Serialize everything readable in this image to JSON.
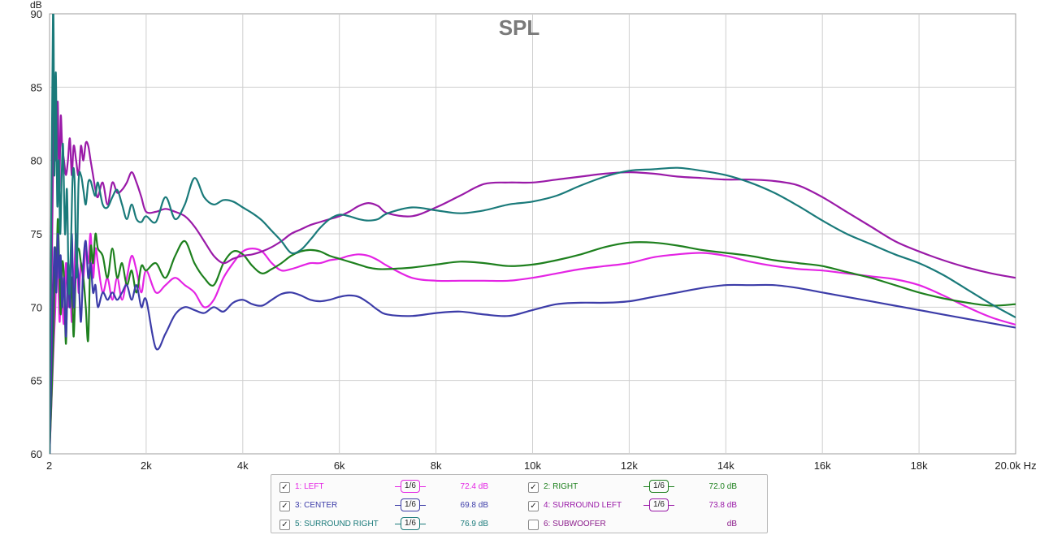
{
  "chart_data": {
    "type": "line",
    "title": "SPL",
    "ylabel": "dB",
    "xlabel": "Hz",
    "xlim": [
      0,
      20000
    ],
    "ylim": [
      60,
      90
    ],
    "x_ticks": [
      {
        "value": 0,
        "label": "2"
      },
      {
        "value": 2000,
        "label": "2k"
      },
      {
        "value": 4000,
        "label": "4k"
      },
      {
        "value": 6000,
        "label": "6k"
      },
      {
        "value": 8000,
        "label": "8k"
      },
      {
        "value": 10000,
        "label": "10k"
      },
      {
        "value": 12000,
        "label": "12k"
      },
      {
        "value": 14000,
        "label": "14k"
      },
      {
        "value": 16000,
        "label": "16k"
      },
      {
        "value": 18000,
        "label": "18k"
      },
      {
        "value": 20000,
        "label": "20.0k Hz"
      }
    ],
    "y_ticks": [
      60,
      65,
      70,
      75,
      80,
      85,
      90
    ],
    "grid": true,
    "series": [
      {
        "name": "1: LEFT",
        "color": "#e424e4",
        "smoothing": "1/6",
        "value_label": "72.4 dB",
        "checked": true,
        "visible": true,
        "x": [
          0,
          80,
          120,
          150,
          180,
          210,
          240,
          270,
          300,
          340,
          380,
          420,
          460,
          500,
          550,
          600,
          650,
          700,
          750,
          800,
          850,
          900,
          950,
          1000,
          1100,
          1200,
          1300,
          1400,
          1500,
          1600,
          1700,
          1800,
          1900,
          2000,
          2200,
          2400,
          2600,
          2800,
          3000,
          3200,
          3400,
          3600,
          3800,
          4000,
          4200,
          4400,
          4600,
          4800,
          5000,
          5200,
          5400,
          5600,
          5800,
          6000,
          6200,
          6400,
          6600,
          6800,
          7000,
          7500,
          8000,
          8500,
          9000,
          9500,
          10000,
          10500,
          11000,
          11500,
          12000,
          12500,
          13000,
          13500,
          14000,
          14500,
          15000,
          15500,
          16000,
          16500,
          17000,
          17500,
          18000,
          18500,
          19000,
          19500,
          20000
        ],
        "y": [
          60,
          67,
          70,
          74,
          72,
          69,
          73,
          70,
          69,
          73,
          70,
          72,
          69,
          71,
          75,
          71,
          73,
          72,
          74,
          73,
          75,
          72,
          74,
          73,
          71,
          72,
          70.5,
          72,
          70.5,
          72,
          73.5,
          72.5,
          71,
          72.5,
          71,
          71.5,
          72,
          71.5,
          71,
          70,
          70.5,
          72,
          73,
          73.8,
          74,
          73.8,
          73,
          72.5,
          72.6,
          72.8,
          73,
          73,
          73.2,
          73.3,
          73.5,
          73.6,
          73.5,
          73.2,
          72.8,
          72,
          71.8,
          71.8,
          71.8,
          71.8,
          72,
          72.3,
          72.6,
          72.8,
          73,
          73.4,
          73.6,
          73.7,
          73.5,
          73.1,
          72.8,
          72.6,
          72.5,
          72.3,
          72.1,
          71.9,
          71.5,
          70.8,
          70,
          69.3,
          68.8
        ]
      },
      {
        "name": "2: RIGHT",
        "color": "#1e801e",
        "smoothing": "1/6",
        "value_label": "72.0 dB",
        "checked": true,
        "visible": true,
        "x": [
          0,
          80,
          110,
          140,
          170,
          200,
          230,
          260,
          300,
          340,
          380,
          420,
          460,
          500,
          550,
          600,
          650,
          700,
          750,
          800,
          850,
          900,
          950,
          1000,
          1100,
          1200,
          1300,
          1400,
          1500,
          1600,
          1700,
          1800,
          1900,
          2000,
          2200,
          2400,
          2600,
          2800,
          3000,
          3200,
          3400,
          3600,
          3800,
          4000,
          4200,
          4400,
          4600,
          4800,
          5000,
          5200,
          5400,
          5600,
          5800,
          6000,
          6200,
          6400,
          6600,
          6800,
          7000,
          7500,
          8000,
          8500,
          9000,
          9500,
          10000,
          10500,
          11000,
          11500,
          12000,
          12500,
          13000,
          13500,
          14000,
          14500,
          15000,
          15500,
          16000,
          16500,
          17000,
          17500,
          18000,
          18500,
          19000,
          19500,
          20000
        ],
        "y": [
          60,
          68,
          74,
          72,
          76,
          73,
          69.5,
          73,
          72,
          67.5,
          73,
          70,
          72,
          68,
          73,
          74,
          73,
          72,
          70,
          67.8,
          74,
          73,
          75,
          74,
          73.5,
          72,
          74,
          72,
          73,
          71.5,
          72.5,
          71,
          72.8,
          72.5,
          73,
          72,
          73.5,
          74.5,
          73,
          72,
          71.5,
          73,
          73.8,
          73.6,
          72.8,
          72.3,
          72.6,
          73,
          73.5,
          73.8,
          73.9,
          73.8,
          73.5,
          73.3,
          73.1,
          72.9,
          72.7,
          72.6,
          72.6,
          72.7,
          72.9,
          73.1,
          73.0,
          72.8,
          72.9,
          73.2,
          73.6,
          74.1,
          74.4,
          74.4,
          74.2,
          73.9,
          73.7,
          73.5,
          73.2,
          73.0,
          72.8,
          72.4,
          72.0,
          71.5,
          71.0,
          70.6,
          70.3,
          70.1,
          70.2
        ]
      },
      {
        "name": "3: CENTER",
        "color": "#3c3ca8",
        "smoothing": "1/6",
        "value_label": "69.8 dB",
        "checked": true,
        "visible": true,
        "x": [
          0,
          80,
          110,
          140,
          170,
          200,
          230,
          260,
          300,
          340,
          380,
          420,
          460,
          500,
          550,
          600,
          650,
          700,
          750,
          800,
          850,
          900,
          950,
          1000,
          1100,
          1200,
          1300,
          1400,
          1500,
          1600,
          1700,
          1800,
          1900,
          2000,
          2200,
          2400,
          2600,
          2800,
          3000,
          3200,
          3400,
          3600,
          3800,
          4000,
          4200,
          4400,
          4600,
          4800,
          5000,
          5200,
          5400,
          5600,
          5800,
          6000,
          6200,
          6400,
          6600,
          6800,
          7000,
          7500,
          8000,
          8500,
          9000,
          9500,
          10000,
          10500,
          11000,
          11500,
          12000,
          12500,
          13000,
          13500,
          14000,
          14500,
          15000,
          15500,
          16000,
          16500,
          17000,
          17500,
          18000,
          18500,
          19000,
          19500,
          20000
        ],
        "y": [
          60,
          72,
          74,
          71,
          75,
          72,
          73.5,
          70,
          72,
          68,
          73,
          70,
          75,
          70,
          73,
          72,
          69,
          73,
          74.5,
          72,
          73,
          71,
          71.5,
          70,
          71,
          70.5,
          71,
          70.5,
          71,
          71.5,
          70.5,
          71.5,
          70,
          70.5,
          67.2,
          68.2,
          69.5,
          70,
          69.8,
          69.6,
          70,
          69.7,
          70.3,
          70.5,
          70.2,
          70.1,
          70.5,
          70.9,
          71,
          70.8,
          70.5,
          70.4,
          70.5,
          70.7,
          70.8,
          70.7,
          70.3,
          69.8,
          69.5,
          69.4,
          69.6,
          69.7,
          69.5,
          69.4,
          69.8,
          70.2,
          70.3,
          70.3,
          70.4,
          70.7,
          71.0,
          71.3,
          71.5,
          71.5,
          71.5,
          71.3,
          71.0,
          70.7,
          70.4,
          70.1,
          69.8,
          69.5,
          69.2,
          68.9,
          68.6
        ]
      },
      {
        "name": "4: SURROUND LEFT",
        "color": "#9a1aa8",
        "smoothing": "1/6",
        "value_label": "73.8 dB",
        "checked": true,
        "visible": true,
        "x": [
          0,
          80,
          110,
          140,
          170,
          200,
          230,
          260,
          300,
          340,
          380,
          420,
          460,
          500,
          550,
          600,
          650,
          700,
          750,
          800,
          850,
          900,
          950,
          1000,
          1100,
          1200,
          1300,
          1400,
          1500,
          1600,
          1700,
          1800,
          1900,
          2000,
          2200,
          2400,
          2600,
          2800,
          3000,
          3200,
          3400,
          3600,
          3800,
          4000,
          4200,
          4400,
          4600,
          4800,
          5000,
          5200,
          5400,
          5600,
          5800,
          6000,
          6200,
          6400,
          6600,
          6800,
          7000,
          7500,
          8000,
          8500,
          9000,
          9500,
          10000,
          10500,
          11000,
          11500,
          12000,
          12500,
          13000,
          13500,
          14000,
          14500,
          15000,
          15500,
          16000,
          16500,
          17000,
          17500,
          18000,
          18500,
          19000,
          19500,
          20000
        ],
        "y": [
          60,
          82,
          85.5,
          80,
          84,
          78,
          83,
          81,
          80,
          79,
          80,
          81.5,
          79,
          81,
          80,
          79,
          81,
          80,
          81.2,
          81,
          80,
          79,
          78,
          77.5,
          78.5,
          77,
          78.5,
          77.8,
          78,
          78.5,
          79.2,
          78.5,
          77.5,
          76.5,
          76.5,
          76.7,
          76.5,
          76.2,
          75.5,
          74.5,
          73.5,
          73,
          73.3,
          73.5,
          73.6,
          73.8,
          74.1,
          74.5,
          75,
          75.3,
          75.6,
          75.8,
          76,
          76.2,
          76.5,
          76.9,
          77.1,
          76.9,
          76.4,
          76.2,
          76.8,
          77.6,
          78.4,
          78.5,
          78.5,
          78.7,
          78.9,
          79.1,
          79.2,
          79.1,
          78.9,
          78.8,
          78.7,
          78.7,
          78.6,
          78.3,
          77.5,
          76.5,
          75.5,
          74.5,
          73.8,
          73.2,
          72.7,
          72.3,
          72.0
        ]
      },
      {
        "name": "5: SURROUND RIGHT",
        "color": "#1a7a7a",
        "smoothing": "1/6",
        "value_label": "76.9 dB",
        "checked": true,
        "visible": true,
        "x": [
          0,
          70,
          100,
          130,
          160,
          190,
          220,
          250,
          280,
          320,
          360,
          400,
          440,
          480,
          520,
          560,
          600,
          650,
          700,
          750,
          800,
          850,
          900,
          950,
          1000,
          1100,
          1200,
          1300,
          1400,
          1500,
          1600,
          1700,
          1800,
          1900,
          2000,
          2200,
          2400,
          2600,
          2800,
          3000,
          3200,
          3400,
          3600,
          3800,
          4000,
          4200,
          4400,
          4600,
          4800,
          5000,
          5200,
          5400,
          5600,
          5800,
          6000,
          6200,
          6400,
          6600,
          6800,
          7000,
          7500,
          8000,
          8500,
          9000,
          9500,
          10000,
          10500,
          11000,
          11500,
          12000,
          12500,
          13000,
          13500,
          14000,
          14500,
          15000,
          15500,
          16000,
          16500,
          17000,
          17500,
          18000,
          18500,
          19000,
          19500,
          20000
        ],
        "y": [
          60,
          90,
          79,
          86,
          77,
          80,
          75,
          79,
          81,
          75,
          78,
          71,
          74,
          79,
          78.5,
          72,
          78.5,
          79,
          78,
          77,
          78.5,
          78.6,
          78,
          77.6,
          78.5,
          77,
          76.8,
          77.5,
          78,
          77,
          76,
          77,
          76,
          75.8,
          76.2,
          75.8,
          77.5,
          76,
          77,
          78.8,
          77.5,
          77,
          77.3,
          77.2,
          76.8,
          76.4,
          75.9,
          75.2,
          74.5,
          73.7,
          73.9,
          74.6,
          75.4,
          76,
          76.3,
          76.2,
          76,
          75.9,
          76,
          76.4,
          76.8,
          76.6,
          76.4,
          76.6,
          77,
          77.2,
          77.6,
          78.3,
          78.9,
          79.3,
          79.4,
          79.5,
          79.3,
          79.0,
          78.5,
          77.8,
          76.9,
          75.9,
          75.0,
          74.3,
          73.6,
          73.0,
          72.2,
          71.2,
          70.2,
          69.3
        ]
      },
      {
        "name": "6: SUBWOOFER",
        "color": "#8a1a8a",
        "smoothing": "",
        "value_label": "dB",
        "checked": false,
        "visible": false,
        "x": [],
        "y": []
      }
    ]
  }
}
